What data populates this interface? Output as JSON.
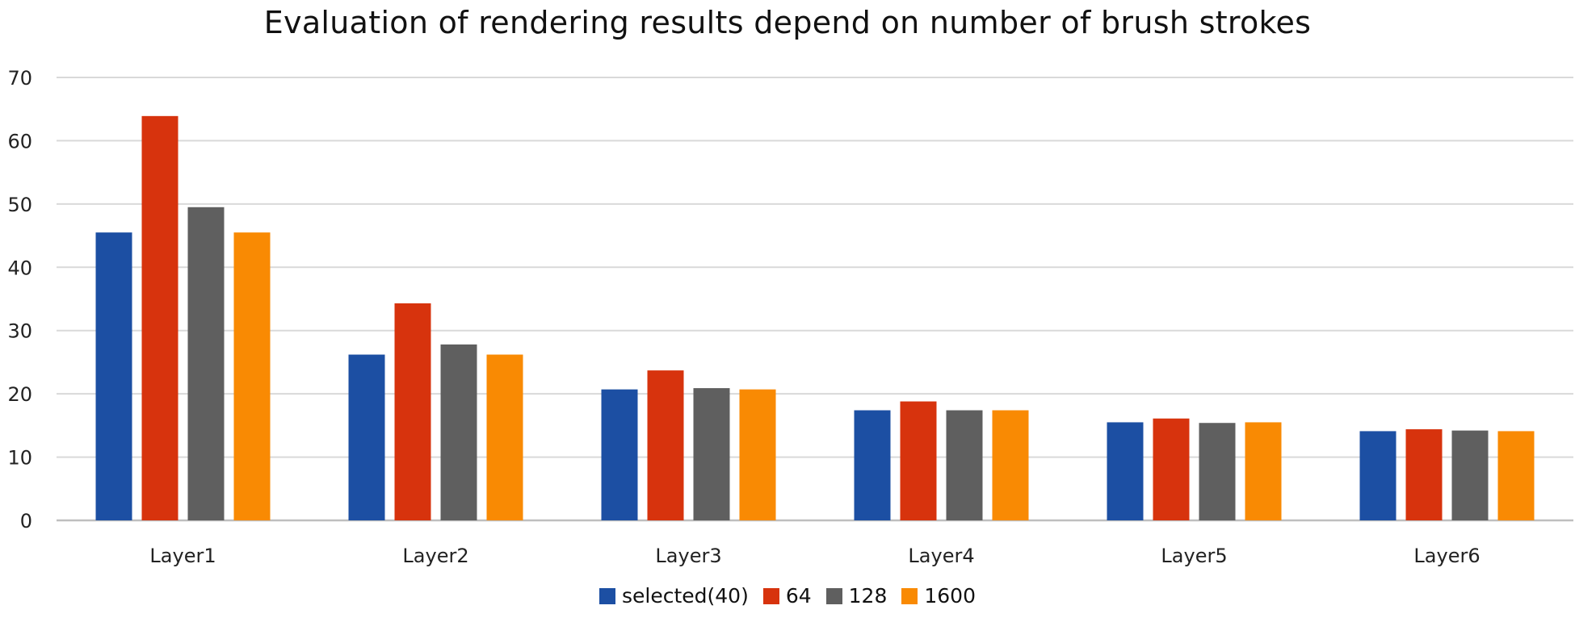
{
  "chart_data": {
    "type": "bar",
    "title": "Evaluation of rendering results depend on number of brush strokes",
    "xlabel": "",
    "ylabel": "",
    "ylim": [
      0,
      70
    ],
    "yticks": [
      "0",
      "10",
      "20",
      "30",
      "40",
      "50",
      "60",
      "70"
    ],
    "categories": [
      "Layer1",
      "Layer2",
      "Layer3",
      "Layer4",
      "Layer5",
      "Layer6"
    ],
    "series": [
      {
        "name": "selected(40)",
        "color": "#1c4fa3",
        "values": [
          45.5,
          26.2,
          20.7,
          17.4,
          15.5,
          14.1
        ]
      },
      {
        "name": "64",
        "color": "#d7330d",
        "values": [
          63.9,
          34.3,
          23.7,
          18.8,
          16.1,
          14.4
        ]
      },
      {
        "name": "128",
        "color": "#5f5f5f",
        "values": [
          49.5,
          27.8,
          20.9,
          17.4,
          15.4,
          14.2
        ]
      },
      {
        "name": "1600",
        "color": "#f98a03",
        "values": [
          45.5,
          26.2,
          20.7,
          17.4,
          15.5,
          14.1
        ]
      }
    ],
    "grid": true,
    "legend_position": "bottom"
  }
}
